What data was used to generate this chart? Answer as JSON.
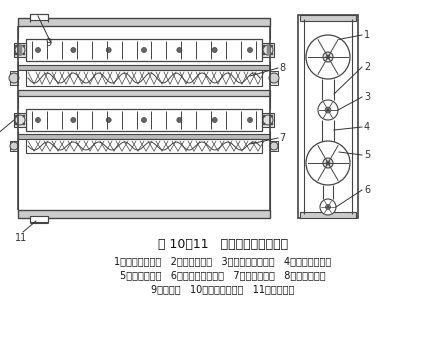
{
  "figure_title": "图 10－11   双层扁条滚筒清理机",
  "caption_line1": "1一上层扁条滚筒   2一上层排杂网   3一上层螺旋输送器   4一下层扁条滚筒",
  "caption_line2": "5一下层排杂网   6一下层螺旋输送器   7一下层出料口   8一上层出料口",
  "caption_line3": "9一进料口   10一上层螺旋出口   11一尘杂出口",
  "bg_color": "#ffffff",
  "line_color": "#444444",
  "figsize": [
    4.46,
    3.38
  ],
  "dpi": 100
}
